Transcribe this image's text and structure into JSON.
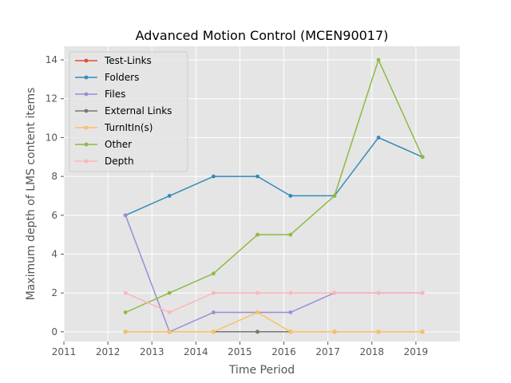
{
  "chart_data": {
    "type": "line",
    "title": "Advanced Motion Control (MCEN90017)",
    "xlabel": "Time Period",
    "ylabel": "Maximum depth of LMS content items",
    "xlim": [
      2011,
      2020
    ],
    "ylim": [
      -0.5,
      14.7
    ],
    "x_ticks": [
      2011,
      2012,
      2013,
      2014,
      2015,
      2016,
      2017,
      2018,
      2019
    ],
    "x_tick_labels": [
      "2011",
      "2012",
      "2013",
      "2014",
      "2015",
      "2016",
      "2017",
      "2018",
      "2019"
    ],
    "y_ticks": [
      0,
      2,
      4,
      6,
      8,
      10,
      12,
      14
    ],
    "y_tick_labels": [
      "0",
      "2",
      "4",
      "6",
      "8",
      "10",
      "12",
      "14"
    ],
    "grid": true,
    "legend_position": "top-left",
    "x": [
      2012.4,
      2013.4,
      2014.4,
      2015.4,
      2016.15,
      2017.15,
      2018.15,
      2019.15
    ],
    "series": [
      {
        "name": "Test-Links",
        "color": "#e24a33",
        "values": [
          0,
          0,
          0,
          0,
          0,
          0,
          0,
          0
        ]
      },
      {
        "name": "Folders",
        "color": "#348abd",
        "values": [
          6,
          7,
          8,
          8,
          7,
          7,
          10,
          9
        ]
      },
      {
        "name": "Files",
        "color": "#988ed5",
        "values": [
          6,
          0,
          1,
          1,
          1,
          2,
          2,
          2
        ]
      },
      {
        "name": "External Links",
        "color": "#777777",
        "values": [
          0,
          0,
          0,
          0,
          0,
          0,
          0,
          0
        ]
      },
      {
        "name": "TurnItIn(s)",
        "color": "#fbc15e",
        "values": [
          0,
          0,
          0,
          1,
          0,
          0,
          0,
          0
        ]
      },
      {
        "name": "Other",
        "color": "#8eba42",
        "values": [
          1,
          2,
          3,
          5,
          5,
          7,
          14,
          9
        ]
      },
      {
        "name": "Depth",
        "color": "#ffb5b8",
        "values": [
          2,
          1,
          2,
          2,
          2,
          2,
          2,
          2
        ]
      }
    ]
  }
}
